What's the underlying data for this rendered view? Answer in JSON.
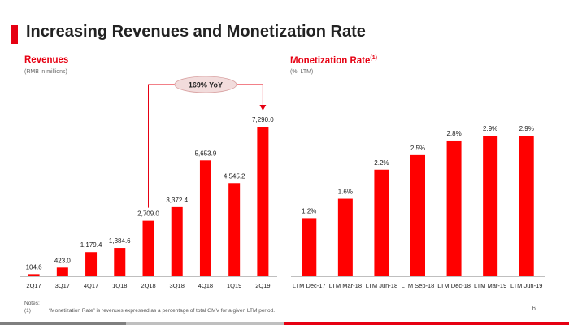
{
  "slide": {
    "title": "Increasing Revenues and Monetization Rate",
    "page_number": "6",
    "notes_heading": "Notes:",
    "note_number": "(1)",
    "note_text": "“Monetization Rate” is revenues expressed as a percentage of total GMV for a given LTM period."
  },
  "revenues": {
    "title": "Revenues",
    "subtitle": "(RMB in millions)"
  },
  "monetization": {
    "title": "Monetization Rate",
    "title_sup": "(1)",
    "subtitle": "(%, LTM)"
  },
  "colors": {
    "accent": "#e60012",
    "bar": "#ff0000",
    "text": "#222222",
    "axis": "#bfbfbf",
    "callout_fill": "#f2dcdc",
    "band_gray": "#7f7f7f",
    "band_light": "#bfbfbf",
    "band_red": "#e60012"
  },
  "chart_data": [
    {
      "type": "bar",
      "title": "Revenues",
      "subtitle": "(RMB in millions)",
      "categories": [
        "2Q17",
        "3Q17",
        "4Q17",
        "1Q18",
        "2Q18",
        "3Q18",
        "4Q18",
        "1Q19",
        "2Q19"
      ],
      "values": [
        104.6,
        423.0,
        1179.4,
        1384.6,
        2709.0,
        3372.4,
        5653.9,
        4545.2,
        7290.0
      ],
      "value_labels": [
        "104.6",
        "423.0",
        "1,179.4",
        "1,384.6",
        "2,709.0",
        "3,372.4",
        "5,653.9",
        "4,545.2",
        "7,290.0"
      ],
      "ylim": [
        0,
        7290
      ],
      "grid": false,
      "annotation": {
        "text": "169% YoY",
        "from": "2Q18",
        "to": "2Q19"
      }
    },
    {
      "type": "bar",
      "title": "Monetization Rate",
      "subtitle": "(%, LTM)",
      "categories": [
        "LTM Dec-17",
        "LTM Mar-18",
        "LTM Jun-18",
        "LTM Sep-18",
        "LTM Dec-18",
        "LTM Mar-19",
        "LTM Jun-19"
      ],
      "values": [
        1.2,
        1.6,
        2.2,
        2.5,
        2.8,
        2.9,
        2.9
      ],
      "value_labels": [
        "1.2%",
        "1.6%",
        "2.2%",
        "2.5%",
        "2.8%",
        "2.9%",
        "2.9%"
      ],
      "ylim": [
        0,
        2.9
      ],
      "grid": false
    }
  ]
}
